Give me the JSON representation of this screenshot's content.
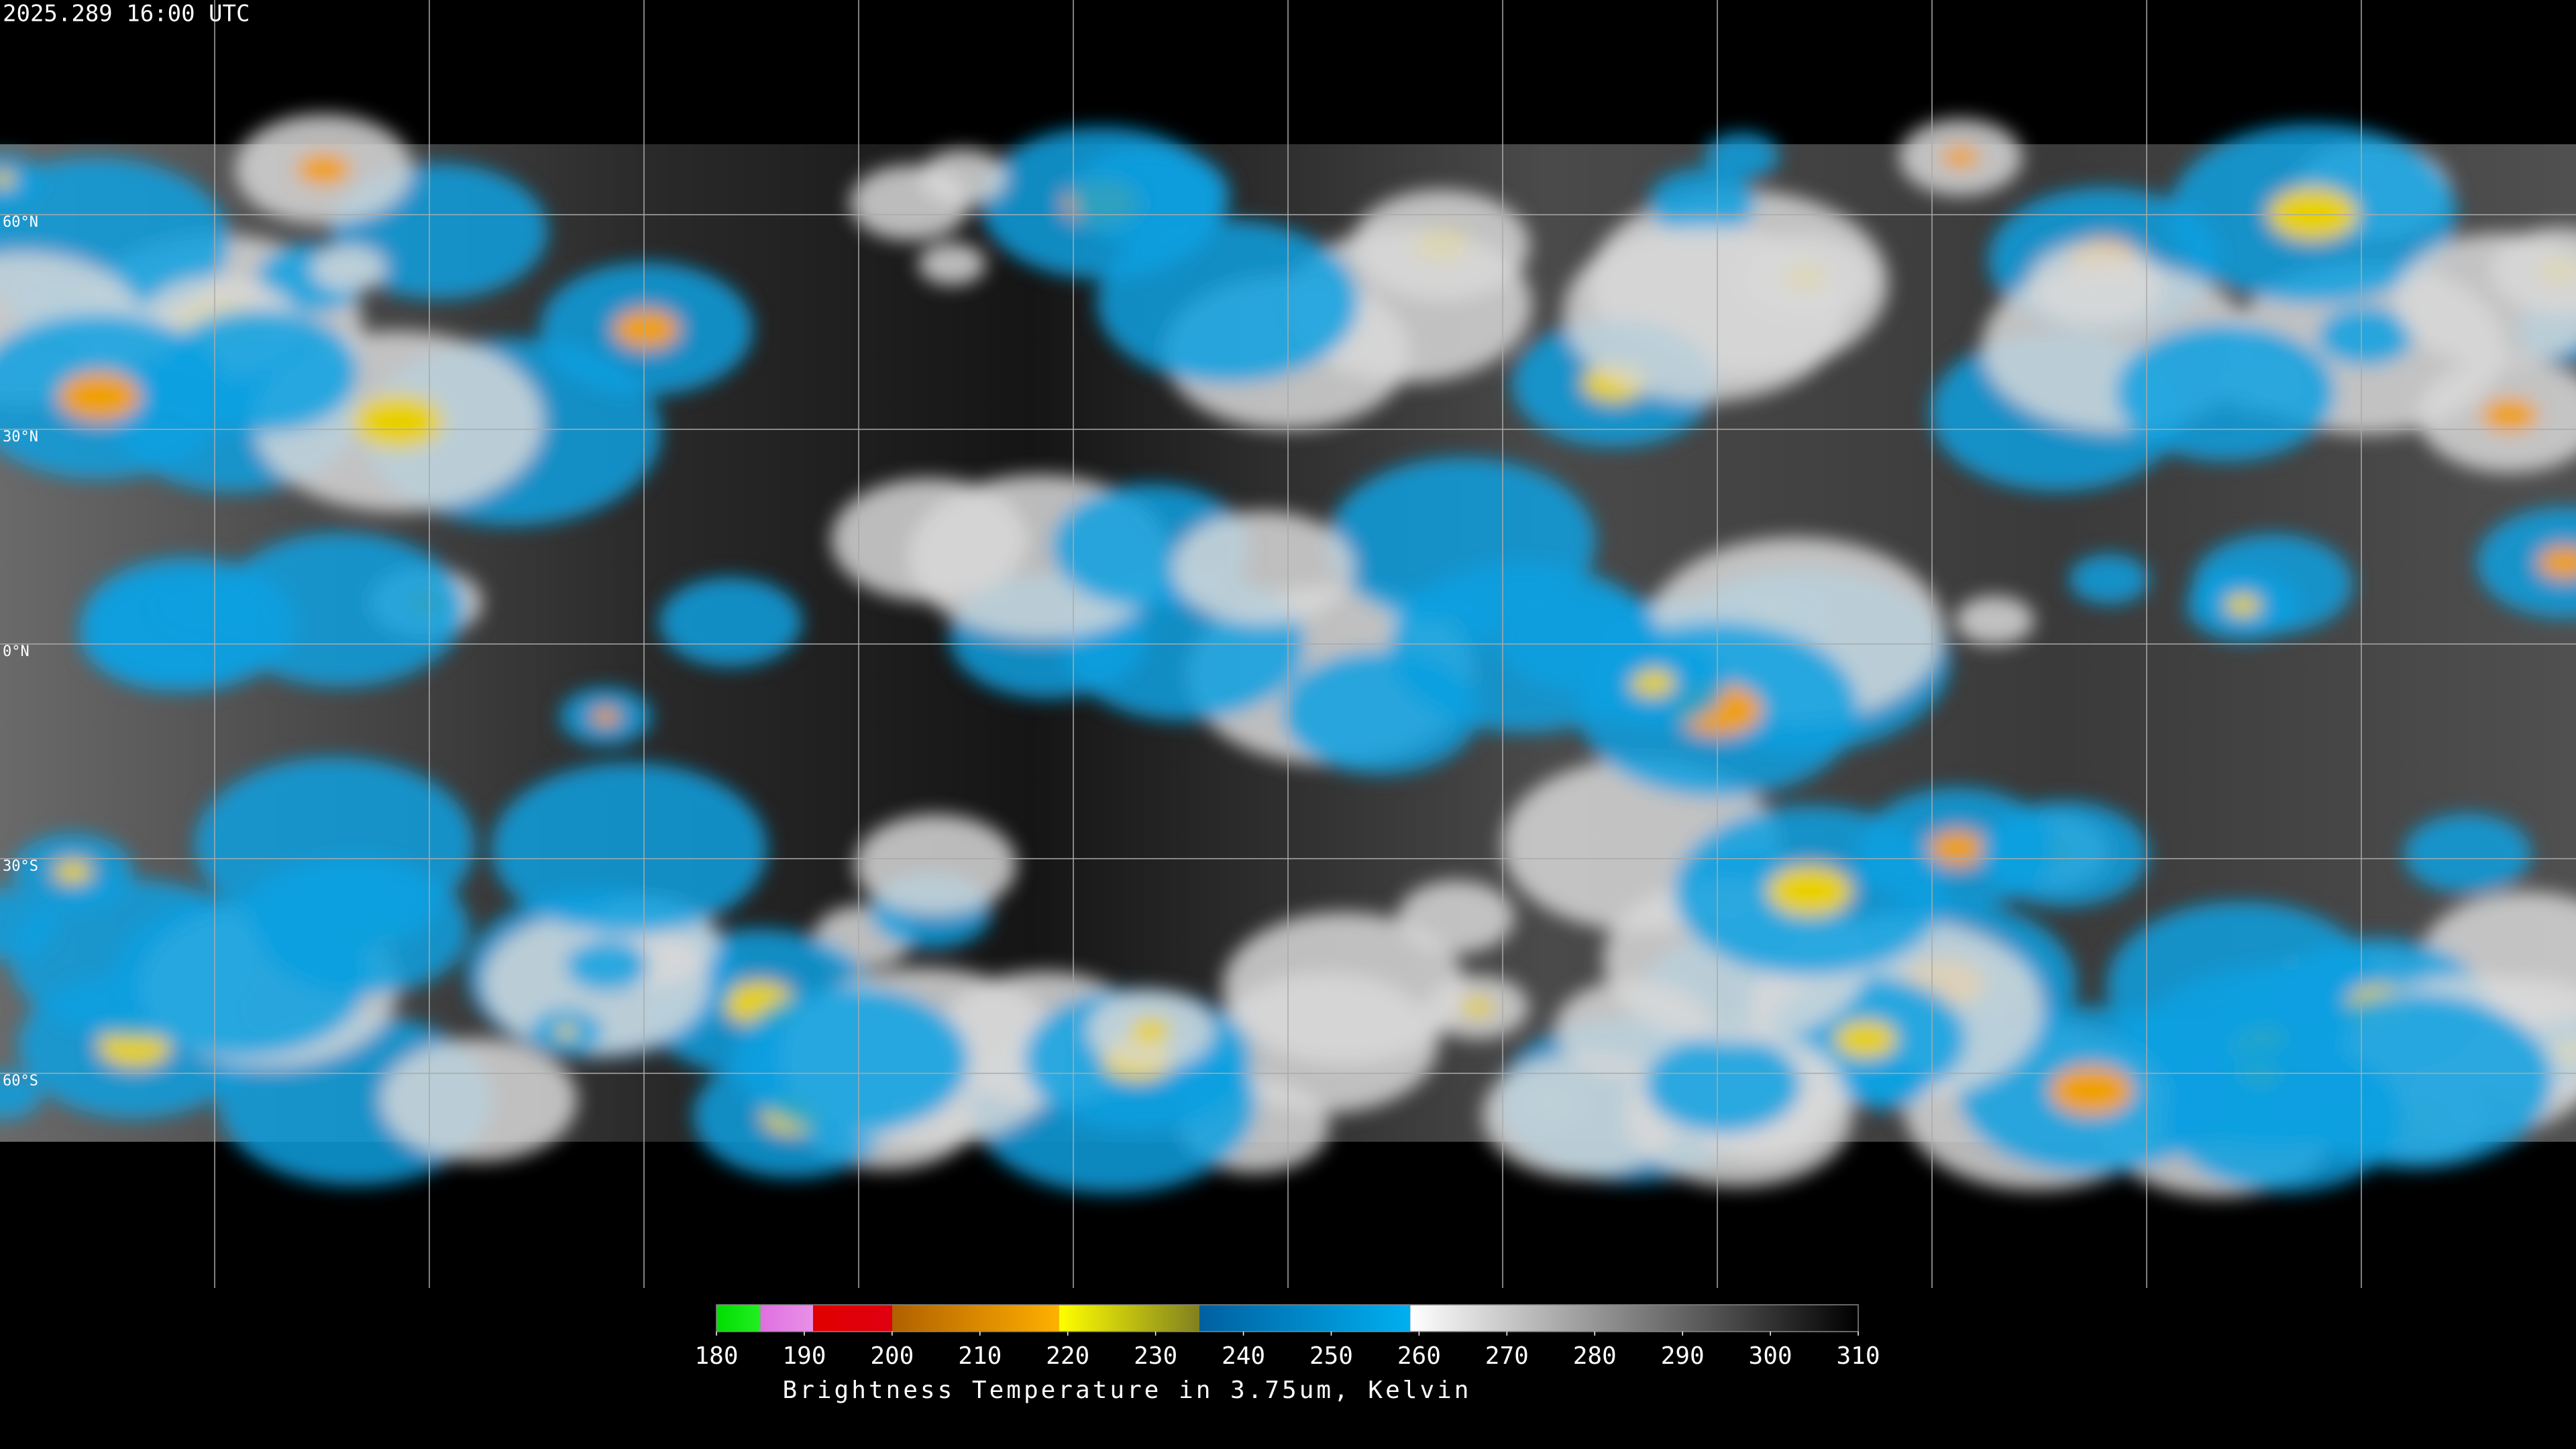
{
  "header": {
    "timestamp": "2025.289 16:00 UTC"
  },
  "map": {
    "latitudes": [
      {
        "value": 60,
        "label": "60°N"
      },
      {
        "value": 30,
        "label": "30°N"
      },
      {
        "value": 0,
        "label": "0°N"
      },
      {
        "value": -30,
        "label": "30°S"
      },
      {
        "value": -60,
        "label": "60°S"
      }
    ]
  },
  "colorbar": {
    "lim": [
      180,
      310
    ],
    "ticks": [
      180,
      190,
      200,
      210,
      220,
      230,
      240,
      250,
      260,
      270,
      280,
      290,
      300,
      310
    ],
    "segments": [
      {
        "from": 180,
        "to": 185,
        "colors": [
          "#00dd00",
          "#22ee22"
        ]
      },
      {
        "from": 185,
        "to": 191,
        "colors": [
          "#e070e0",
          "#e890e8"
        ]
      },
      {
        "from": 191,
        "to": 200,
        "colors": [
          "#e00000",
          "#e00010"
        ]
      },
      {
        "from": 200,
        "to": 219,
        "colors": [
          "#b06000",
          "#ffb000"
        ]
      },
      {
        "from": 219,
        "to": 235,
        "colors": [
          "#ffff00",
          "#808020"
        ]
      },
      {
        "from": 235,
        "to": 259,
        "colors": [
          "#0060a0",
          "#00b0f0"
        ]
      },
      {
        "from": 259,
        "to": 310,
        "colors": [
          "#ffffff",
          "#000000"
        ]
      }
    ],
    "title": "Brightness Temperature in 3.75um, Kelvin"
  }
}
